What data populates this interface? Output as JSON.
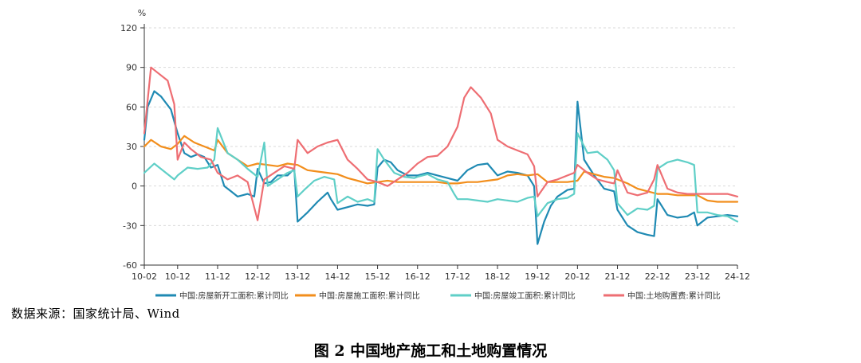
{
  "source_note": "数据来源：国家统计局、Wind",
  "figure_caption": "图 2    中国地产施工和土地购置情况",
  "colors": {
    "new_starts": "#1f8ab3",
    "under_construction": "#f28e1c",
    "completed": "#5fcfc7",
    "land": "#ee6e73",
    "axis": "#333333",
    "grid": "#d9d9d9"
  },
  "chart_data": {
    "type": "line",
    "ylabel": "%",
    "ylim": [
      -60,
      120
    ],
    "yticks": [
      -60,
      -30,
      0,
      30,
      60,
      90,
      120
    ],
    "xticks": [
      "10-02",
      "10-12",
      "11-12",
      "12-12",
      "13-12",
      "14-12",
      "15-12",
      "16-12",
      "17-12",
      "18-12",
      "19-12",
      "20-12",
      "21-12",
      "22-12",
      "23-12",
      "24-12"
    ],
    "xlim": [
      "2010-02",
      "2024-12"
    ],
    "grid": true,
    "legend_position": "bottom",
    "series": [
      {
        "name": "中国:房屋新开工面积:累计同比",
        "color": "#1f8ab3",
        "points": [
          [
            "2010-02",
            35
          ],
          [
            "2010-03",
            60
          ],
          [
            "2010-05",
            72
          ],
          [
            "2010-07",
            68
          ],
          [
            "2010-10",
            58
          ],
          [
            "2010-12",
            40
          ],
          [
            "2011-02",
            25
          ],
          [
            "2011-04",
            22
          ],
          [
            "2011-06",
            24
          ],
          [
            "2011-08",
            22
          ],
          [
            "2011-10",
            14
          ],
          [
            "2011-12",
            16
          ],
          [
            "2012-02",
            0
          ],
          [
            "2012-04",
            -4
          ],
          [
            "2012-06",
            -8
          ],
          [
            "2012-09",
            -6
          ],
          [
            "2012-11",
            -8
          ],
          [
            "2012-12",
            13
          ],
          [
            "2013-02",
            2
          ],
          [
            "2013-04",
            3
          ],
          [
            "2013-06",
            8
          ],
          [
            "2013-09",
            8
          ],
          [
            "2013-11",
            13
          ],
          [
            "2013-12",
            -27
          ],
          [
            "2014-03",
            -20
          ],
          [
            "2014-06",
            -12
          ],
          [
            "2014-09",
            -5
          ],
          [
            "2014-10",
            -10
          ],
          [
            "2014-12",
            -18
          ],
          [
            "2015-03",
            -16
          ],
          [
            "2015-06",
            -14
          ],
          [
            "2015-09",
            -15
          ],
          [
            "2015-11",
            -14
          ],
          [
            "2015-12",
            14
          ],
          [
            "2016-02",
            20
          ],
          [
            "2016-04",
            18
          ],
          [
            "2016-06",
            12
          ],
          [
            "2016-09",
            8
          ],
          [
            "2016-12",
            8
          ],
          [
            "2017-03",
            10
          ],
          [
            "2017-06",
            8
          ],
          [
            "2017-09",
            6
          ],
          [
            "2017-12",
            4
          ],
          [
            "2018-03",
            12
          ],
          [
            "2018-06",
            16
          ],
          [
            "2018-09",
            17
          ],
          [
            "2018-12",
            8
          ],
          [
            "2019-03",
            11
          ],
          [
            "2019-06",
            10
          ],
          [
            "2019-09",
            8
          ],
          [
            "2019-11",
            0
          ],
          [
            "2019-12",
            -44
          ],
          [
            "2020-02",
            -27
          ],
          [
            "2020-04",
            -15
          ],
          [
            "2020-06",
            -8
          ],
          [
            "2020-09",
            -3
          ],
          [
            "2020-11",
            -2
          ],
          [
            "2020-12",
            64
          ],
          [
            "2021-02",
            20
          ],
          [
            "2021-05",
            8
          ],
          [
            "2021-08",
            -2
          ],
          [
            "2021-11",
            -4
          ],
          [
            "2021-12",
            -18
          ],
          [
            "2022-03",
            -30
          ],
          [
            "2022-06",
            -35
          ],
          [
            "2022-09",
            -37
          ],
          [
            "2022-11",
            -38
          ],
          [
            "2022-12",
            -10
          ],
          [
            "2023-03",
            -22
          ],
          [
            "2023-06",
            -24
          ],
          [
            "2023-09",
            -23
          ],
          [
            "2023-11",
            -20
          ],
          [
            "2023-12",
            -30
          ],
          [
            "2024-03",
            -24
          ],
          [
            "2024-06",
            -23
          ],
          [
            "2024-09",
            -22
          ],
          [
            "2024-12",
            -23
          ]
        ]
      },
      {
        "name": "中国:房屋施工面积:累计同比",
        "color": "#f28e1c",
        "points": [
          [
            "2010-02",
            30
          ],
          [
            "2010-04",
            35
          ],
          [
            "2010-07",
            30
          ],
          [
            "2010-10",
            28
          ],
          [
            "2010-12",
            32
          ],
          [
            "2011-02",
            38
          ],
          [
            "2011-05",
            33
          ],
          [
            "2011-08",
            30
          ],
          [
            "2011-11",
            27
          ],
          [
            "2011-12",
            35
          ],
          [
            "2012-03",
            25
          ],
          [
            "2012-06",
            20
          ],
          [
            "2012-09",
            15
          ],
          [
            "2012-12",
            17
          ],
          [
            "2013-03",
            16
          ],
          [
            "2013-06",
            15
          ],
          [
            "2013-09",
            17
          ],
          [
            "2013-12",
            16
          ],
          [
            "2014-03",
            12
          ],
          [
            "2014-06",
            11
          ],
          [
            "2014-09",
            10
          ],
          [
            "2014-12",
            9
          ],
          [
            "2015-03",
            6
          ],
          [
            "2015-06",
            4
          ],
          [
            "2015-09",
            2
          ],
          [
            "2015-12",
            3
          ],
          [
            "2016-03",
            4
          ],
          [
            "2016-06",
            3
          ],
          [
            "2016-09",
            3
          ],
          [
            "2016-12",
            3
          ],
          [
            "2017-03",
            3
          ],
          [
            "2017-06",
            3
          ],
          [
            "2017-09",
            2
          ],
          [
            "2017-12",
            2
          ],
          [
            "2018-03",
            3
          ],
          [
            "2018-06",
            3
          ],
          [
            "2018-09",
            4
          ],
          [
            "2018-12",
            5
          ],
          [
            "2019-03",
            8
          ],
          [
            "2019-06",
            9
          ],
          [
            "2019-09",
            8
          ],
          [
            "2019-12",
            9
          ],
          [
            "2020-03",
            3
          ],
          [
            "2020-06",
            3
          ],
          [
            "2020-09",
            3
          ],
          [
            "2020-12",
            4
          ],
          [
            "2021-02",
            11
          ],
          [
            "2021-05",
            9
          ],
          [
            "2021-08",
            7
          ],
          [
            "2021-11",
            6
          ],
          [
            "2021-12",
            5
          ],
          [
            "2022-03",
            2
          ],
          [
            "2022-06",
            -2
          ],
          [
            "2022-09",
            -4
          ],
          [
            "2022-12",
            -6
          ],
          [
            "2023-03",
            -6
          ],
          [
            "2023-06",
            -7
          ],
          [
            "2023-09",
            -7
          ],
          [
            "2023-12",
            -7
          ],
          [
            "2024-03",
            -11
          ],
          [
            "2024-06",
            -12
          ],
          [
            "2024-09",
            -12
          ],
          [
            "2024-12",
            -12
          ]
        ]
      },
      {
        "name": "中国:房屋竣工面积:累计同比",
        "color": "#5fcfc7",
        "points": [
          [
            "2010-02",
            10
          ],
          [
            "2010-05",
            17
          ],
          [
            "2010-08",
            11
          ],
          [
            "2010-11",
            5
          ],
          [
            "2010-12",
            8
          ],
          [
            "2011-03",
            14
          ],
          [
            "2011-06",
            13
          ],
          [
            "2011-09",
            14
          ],
          [
            "2011-11",
            20
          ],
          [
            "2011-12",
            44
          ],
          [
            "2012-03",
            25
          ],
          [
            "2012-06",
            20
          ],
          [
            "2012-09",
            13
          ],
          [
            "2012-12",
            7
          ],
          [
            "2013-02",
            33
          ],
          [
            "2013-03",
            0
          ],
          [
            "2013-06",
            5
          ],
          [
            "2013-09",
            10
          ],
          [
            "2013-11",
            12
          ],
          [
            "2013-12",
            -8
          ],
          [
            "2014-02",
            -3
          ],
          [
            "2014-05",
            4
          ],
          [
            "2014-08",
            7
          ],
          [
            "2014-11",
            5
          ],
          [
            "2014-12",
            -13
          ],
          [
            "2015-03",
            -8
          ],
          [
            "2015-06",
            -12
          ],
          [
            "2015-09",
            -10
          ],
          [
            "2015-11",
            -12
          ],
          [
            "2015-12",
            28
          ],
          [
            "2016-02",
            20
          ],
          [
            "2016-05",
            10
          ],
          [
            "2016-08",
            7
          ],
          [
            "2016-11",
            6
          ],
          [
            "2016-12",
            7
          ],
          [
            "2017-03",
            9
          ],
          [
            "2017-06",
            5
          ],
          [
            "2017-09",
            3
          ],
          [
            "2017-11",
            -6
          ],
          [
            "2017-12",
            -10
          ],
          [
            "2018-03",
            -10
          ],
          [
            "2018-06",
            -11
          ],
          [
            "2018-09",
            -12
          ],
          [
            "2018-12",
            -10
          ],
          [
            "2019-03",
            -11
          ],
          [
            "2019-06",
            -12
          ],
          [
            "2019-09",
            -9
          ],
          [
            "2019-11",
            -8
          ],
          [
            "2019-12",
            -23
          ],
          [
            "2020-03",
            -13
          ],
          [
            "2020-06",
            -10
          ],
          [
            "2020-09",
            -9
          ],
          [
            "2020-11",
            -6
          ],
          [
            "2020-12",
            40
          ],
          [
            "2021-03",
            25
          ],
          [
            "2021-06",
            26
          ],
          [
            "2021-09",
            20
          ],
          [
            "2021-11",
            12
          ],
          [
            "2021-12",
            -13
          ],
          [
            "2022-03",
            -22
          ],
          [
            "2022-06",
            -17
          ],
          [
            "2022-09",
            -18
          ],
          [
            "2022-11",
            -15
          ],
          [
            "2022-12",
            13
          ],
          [
            "2023-03",
            18
          ],
          [
            "2023-06",
            20
          ],
          [
            "2023-09",
            18
          ],
          [
            "2023-11",
            16
          ],
          [
            "2023-12",
            -20
          ],
          [
            "2024-03",
            -20
          ],
          [
            "2024-06",
            -22
          ],
          [
            "2024-09",
            -23
          ],
          [
            "2024-12",
            -27
          ]
        ]
      },
      {
        "name": "中国:土地购置费:累计同比",
        "color": "#ee6e73",
        "points": [
          [
            "2010-02",
            40
          ],
          [
            "2010-04",
            90
          ],
          [
            "2010-06",
            86
          ],
          [
            "2010-09",
            80
          ],
          [
            "2010-11",
            62
          ],
          [
            "2010-12",
            20
          ],
          [
            "2011-02",
            33
          ],
          [
            "2011-04",
            28
          ],
          [
            "2011-07",
            22
          ],
          [
            "2011-10",
            20
          ],
          [
            "2011-12",
            10
          ],
          [
            "2012-03",
            5
          ],
          [
            "2012-06",
            8
          ],
          [
            "2012-09",
            3
          ],
          [
            "2012-12",
            -26
          ],
          [
            "2013-02",
            5
          ],
          [
            "2013-05",
            10
          ],
          [
            "2013-08",
            15
          ],
          [
            "2013-11",
            13
          ],
          [
            "2013-12",
            35
          ],
          [
            "2014-03",
            25
          ],
          [
            "2014-06",
            30
          ],
          [
            "2014-09",
            33
          ],
          [
            "2014-12",
            35
          ],
          [
            "2015-03",
            20
          ],
          [
            "2015-06",
            13
          ],
          [
            "2015-09",
            5
          ],
          [
            "2015-12",
            3
          ],
          [
            "2016-03",
            0
          ],
          [
            "2016-06",
            5
          ],
          [
            "2016-09",
            10
          ],
          [
            "2016-12",
            17
          ],
          [
            "2017-03",
            22
          ],
          [
            "2017-06",
            23
          ],
          [
            "2017-09",
            30
          ],
          [
            "2017-12",
            45
          ],
          [
            "2018-02",
            67
          ],
          [
            "2018-04",
            75
          ],
          [
            "2018-07",
            67
          ],
          [
            "2018-10",
            55
          ],
          [
            "2018-12",
            35
          ],
          [
            "2019-03",
            30
          ],
          [
            "2019-06",
            27
          ],
          [
            "2019-09",
            24
          ],
          [
            "2019-11",
            15
          ],
          [
            "2019-12",
            -8
          ],
          [
            "2020-03",
            3
          ],
          [
            "2020-06",
            5
          ],
          [
            "2020-09",
            8
          ],
          [
            "2020-11",
            10
          ],
          [
            "2020-12",
            16
          ],
          [
            "2021-03",
            10
          ],
          [
            "2021-06",
            5
          ],
          [
            "2021-09",
            3
          ],
          [
            "2021-11",
            2
          ],
          [
            "2021-12",
            12
          ],
          [
            "2022-03",
            -5
          ],
          [
            "2022-06",
            -7
          ],
          [
            "2022-09",
            -5
          ],
          [
            "2022-11",
            5
          ],
          [
            "2022-12",
            16
          ],
          [
            "2023-03",
            -2
          ],
          [
            "2023-06",
            -5
          ],
          [
            "2023-09",
            -6
          ],
          [
            "2023-12",
            -6
          ],
          [
            "2024-03",
            -6
          ],
          [
            "2024-06",
            -6
          ],
          [
            "2024-09",
            -6
          ],
          [
            "2024-12",
            -8
          ]
        ]
      }
    ]
  }
}
